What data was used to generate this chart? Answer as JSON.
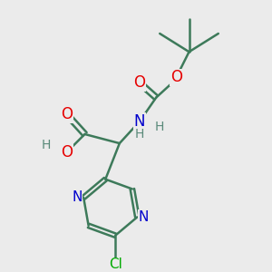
{
  "background_color": "#ebebeb",
  "bond_color": "#3d7a5a",
  "bond_width": 1.8,
  "atom_colors": {
    "O": "#e60000",
    "N": "#0000cc",
    "Cl": "#00aa00",
    "H": "#5a8a7a"
  },
  "font_size": 11,
  "figsize": [
    3.0,
    3.0
  ],
  "dpi": 100
}
